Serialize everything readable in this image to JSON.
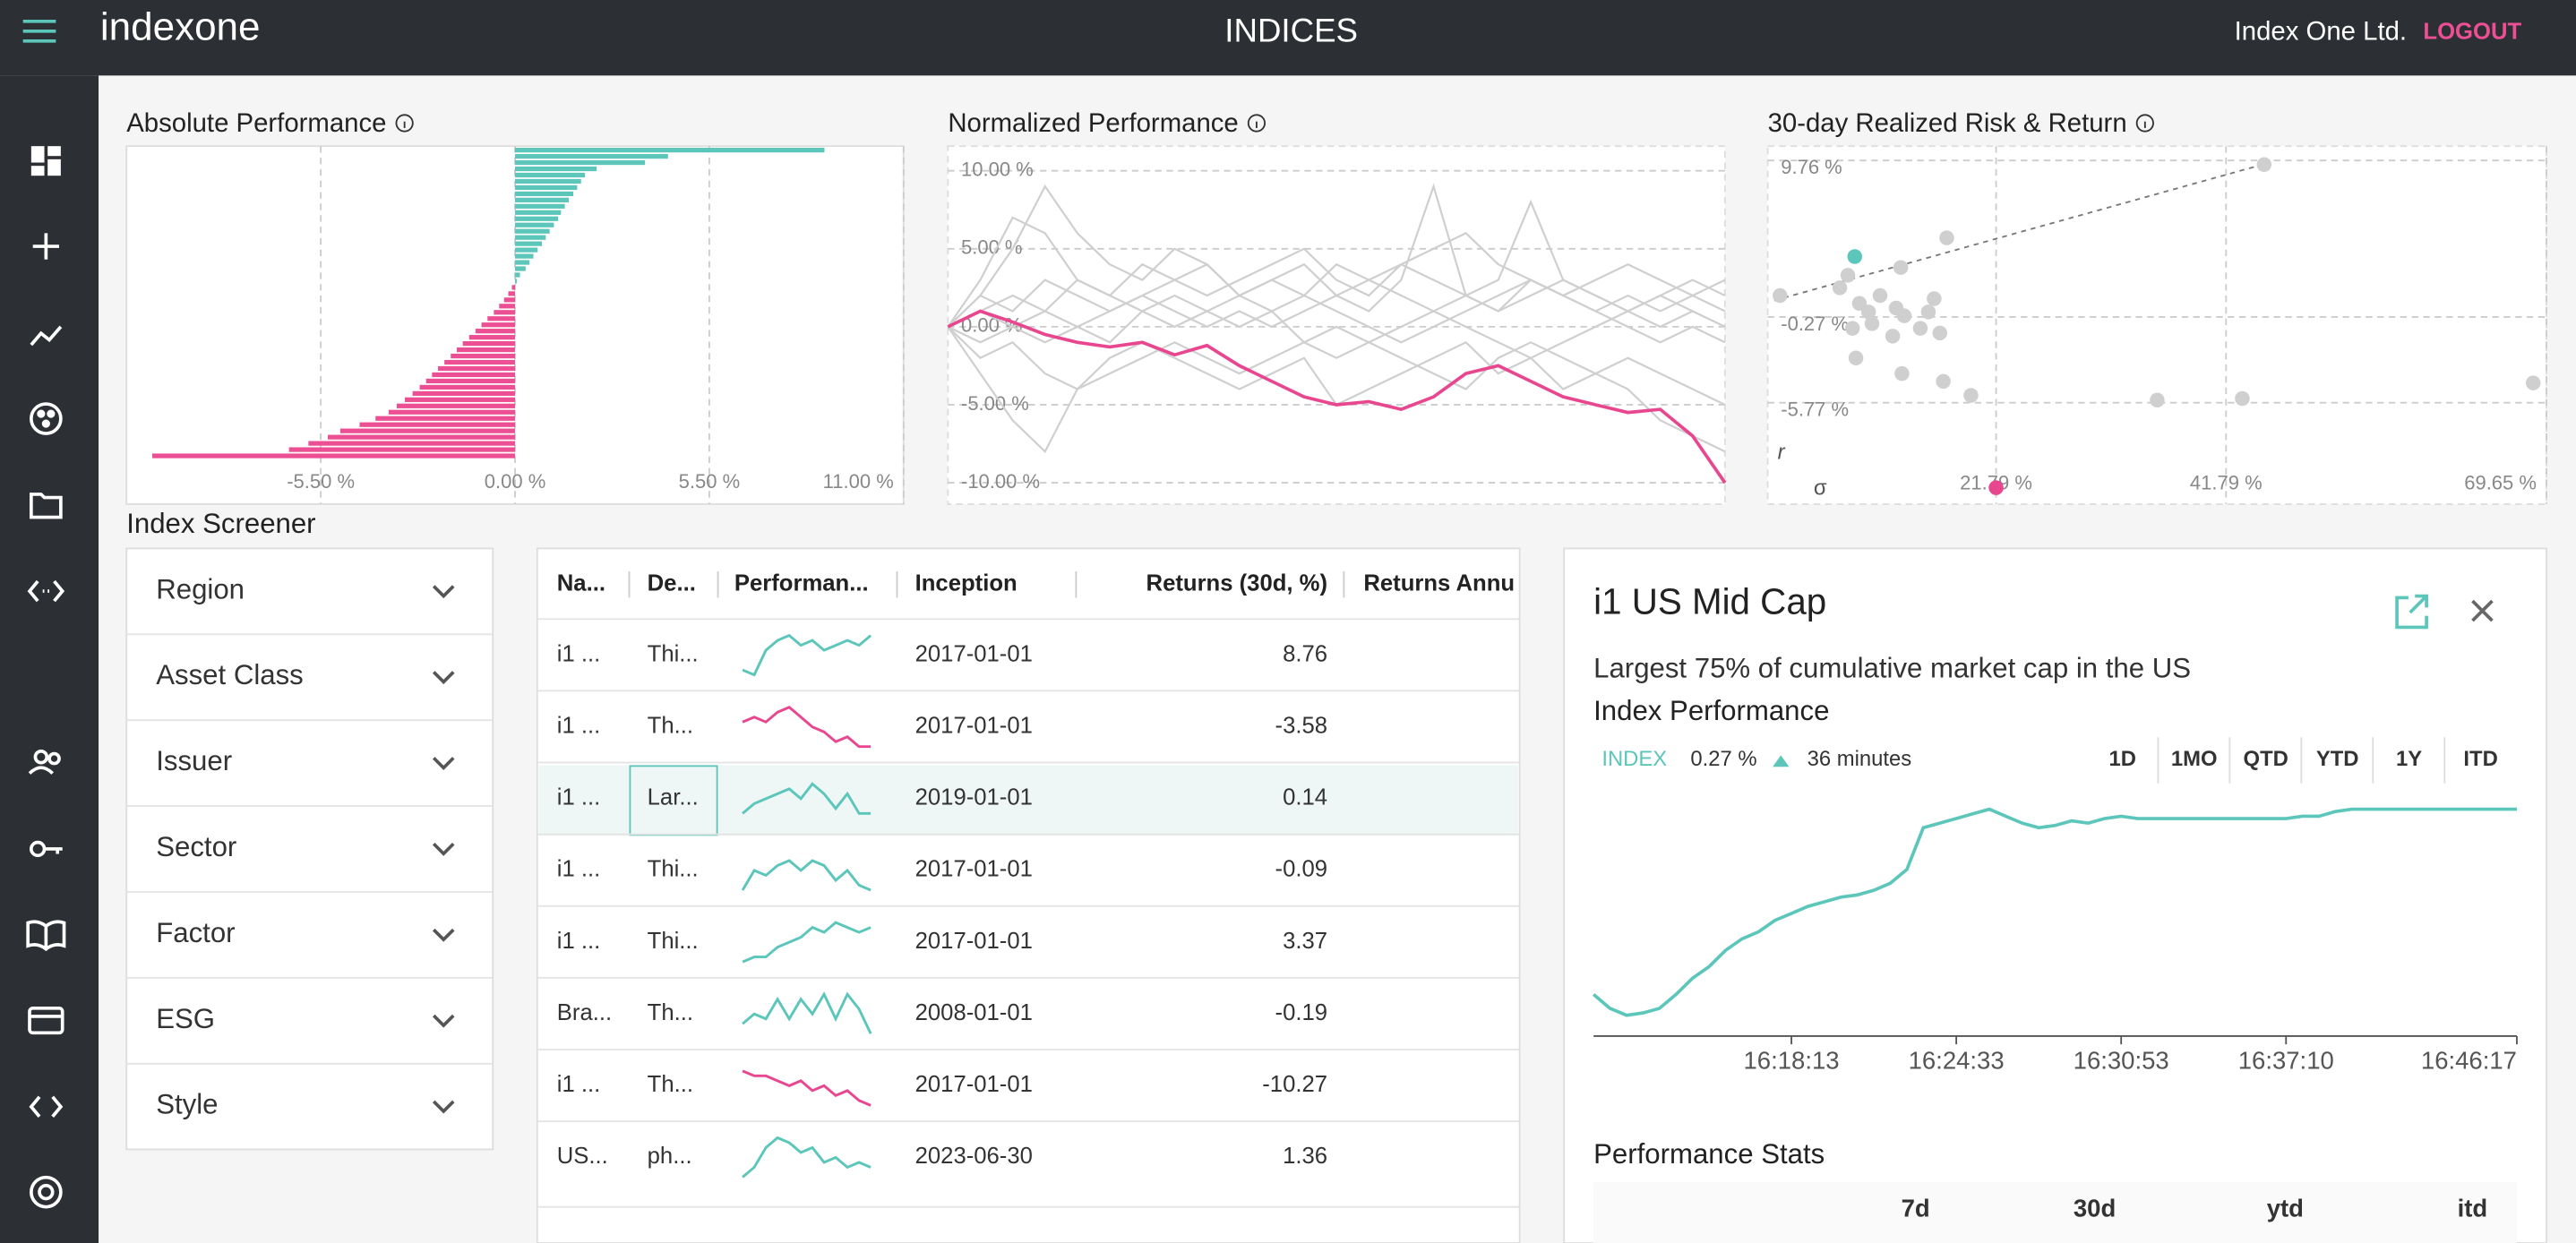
{
  "header": {
    "logo": "indexone",
    "title": "INDICES",
    "company": "Index One Ltd.",
    "logout": "LOGOUT"
  },
  "chart_data": [
    {
      "type": "bar",
      "orientation": "horizontal",
      "title": "Absolute Performance",
      "positive_color": "#5cc6ba",
      "negative_color": "#ec4f93",
      "grid": true,
      "values": [
        8.76,
        4.33,
        3.68,
        2.31,
        1.98,
        1.87,
        1.76,
        1.65,
        1.52,
        1.41,
        1.3,
        1.22,
        1.1,
        0.98,
        0.87,
        0.76,
        0.64,
        0.52,
        0.41,
        0.3,
        0.14,
        0.05,
        -0.09,
        -0.19,
        -0.31,
        -0.45,
        -0.6,
        -0.78,
        -0.95,
        -1.12,
        -1.3,
        -1.48,
        -1.65,
        -1.82,
        -2,
        -2.18,
        -2.35,
        -2.52,
        -2.7,
        -2.9,
        -3.12,
        -3.35,
        -3.58,
        -3.95,
        -4.4,
        -4.95,
        -5.3,
        -5.85,
        -6.4,
        -10.27
      ],
      "xlim": [
        -11,
        11
      ],
      "xticks": [
        {
          "value": -5.5,
          "label": "-5.50 %"
        },
        {
          "value": 0,
          "label": "0.00 %"
        },
        {
          "value": 5.5,
          "label": "5.50 %"
        },
        {
          "value": 11,
          "label": "11.00 %"
        }
      ]
    },
    {
      "type": "line",
      "title": "Normalized Performance",
      "grid": true,
      "ylim": [
        -11.37,
        11.58
      ],
      "yticks": [
        {
          "value": 10,
          "label": "10.00 %"
        },
        {
          "value": 5,
          "label": "5.00 %"
        },
        {
          "value": 0,
          "label": "0.00 %"
        },
        {
          "value": -5,
          "label": "-5.00 %"
        },
        {
          "value": -10,
          "label": "-10.00 %"
        }
      ],
      "series": [
        {
          "color": "#cfcfcf",
          "values": [
            0,
            2,
            5,
            9,
            6,
            4,
            3,
            5,
            4,
            2,
            3,
            4,
            2,
            1,
            3,
            9,
            2,
            1,
            3,
            2,
            1,
            2,
            1,
            2,
            1
          ]
        },
        {
          "color": "#cfcfcf",
          "values": [
            0,
            -3,
            -6,
            -8,
            -4,
            -2,
            -1,
            -2,
            -3,
            -4,
            -3,
            -2,
            -5,
            -4,
            -3,
            -2,
            -1,
            -3,
            -2,
            -4,
            -3,
            -2,
            -3,
            -4,
            -5
          ]
        },
        {
          "color": "#cfcfcf",
          "values": [
            0,
            1,
            2,
            1,
            3,
            2,
            4,
            3,
            2,
            3,
            4,
            5,
            3,
            2,
            4,
            5,
            6,
            4,
            3,
            2,
            3,
            4,
            3,
            2,
            3
          ]
        },
        {
          "color": "#cfcfcf",
          "values": [
            0,
            -1,
            0,
            1,
            0,
            -1,
            1,
            2,
            1,
            0,
            1,
            2,
            1,
            0,
            -1,
            0,
            1,
            2,
            3,
            2,
            1,
            0,
            -1,
            0,
            -1
          ]
        },
        {
          "color": "#cfcfcf",
          "values": [
            0,
            2,
            1,
            3,
            2,
            1,
            2,
            3,
            4,
            2,
            3,
            2,
            4,
            3,
            2,
            1,
            2,
            3,
            8,
            3,
            2,
            1,
            0,
            1,
            0
          ]
        },
        {
          "color": "#cfcfcf",
          "values": [
            0,
            -2,
            -1,
            -3,
            -4,
            -3,
            -2,
            -1,
            -2,
            -3,
            -2,
            -1,
            0,
            -1,
            -2,
            -3,
            -4,
            -2,
            -1,
            -2,
            -3,
            -4,
            -6,
            -7,
            -8
          ]
        },
        {
          "color": "#cfcfcf",
          "values": [
            0,
            1,
            0,
            -1,
            0,
            1,
            2,
            1,
            0,
            1,
            0,
            1,
            2,
            3,
            4,
            3,
            2,
            1,
            2,
            3,
            2,
            1,
            2,
            1,
            0
          ]
        },
        {
          "color": "#cfcfcf",
          "values": [
            0,
            3,
            7,
            6,
            3,
            2,
            1,
            0,
            1,
            2,
            1,
            -1,
            -2,
            -1,
            0,
            1,
            0,
            -1,
            -2,
            -1,
            0,
            1,
            2,
            3,
            2
          ]
        },
        {
          "color": "#e8478f",
          "values": [
            0,
            1,
            0.3,
            -0.5,
            -1,
            -1.3,
            -1,
            -1.8,
            -1.2,
            -2.5,
            -3.5,
            -4.5,
            -5,
            -4.8,
            -5.3,
            -4.5,
            -3,
            -2.5,
            -3.5,
            -4.5,
            -5,
            -5.5,
            -5.3,
            -7,
            -10
          ]
        }
      ]
    },
    {
      "type": "scatter",
      "title": "30-day Realized Risk & Return",
      "xlabel": "σ",
      "ylabel": "r",
      "grid": true,
      "xlim": [
        1.93,
        69.65
      ],
      "ylim": [
        -12.27,
        10.68
      ],
      "xticks": [
        {
          "value": 21.79,
          "label": "21.79 %"
        },
        {
          "value": 41.79,
          "label": "41.79 %"
        },
        {
          "value": 69.65,
          "label": "69.65 %"
        }
      ],
      "yticks": [
        {
          "value": 9.76,
          "label": "9.76 %"
        },
        {
          "value": -0.27,
          "label": "-0.27 %"
        },
        {
          "value": -5.77,
          "label": "-5.77 %"
        }
      ],
      "series": [
        {
          "color": "#cfcfcf",
          "x": [
            45.1,
            13.5,
            17.5,
            3.0,
            8.2,
            8.9,
            9.9,
            10.7,
            11.0,
            9.3,
            13.1,
            13.8,
            15.9,
            16.4,
            15.2,
            16.9,
            12.8,
            9.6,
            13.6,
            17.2,
            19.6,
            35.8,
            43.2,
            68.5,
            11.7
          ],
          "values": [
            9.5,
            2.9,
            4.8,
            1.1,
            1.6,
            2.4,
            0.6,
            0.05,
            -0.7,
            -1.0,
            0.3,
            -0.2,
            0.05,
            0.9,
            -1.0,
            -1.3,
            -1.5,
            -2.9,
            -3.9,
            -4.4,
            -5.3,
            -5.6,
            -5.5,
            -4.5,
            1.1
          ]
        },
        {
          "color": "#5cc6ba",
          "x": [
            9.5
          ],
          "values": [
            3.6
          ]
        }
      ],
      "trendline": {
        "x": [
          2.5,
          45.07
        ],
        "values": [
          0.78,
          9.52
        ]
      },
      "x_marker": {
        "value": 21.79,
        "color": "#e8478f"
      }
    },
    {
      "type": "line",
      "title": "Index Performance",
      "color": "#5cc6ba",
      "ylim": [
        0,
        100
      ],
      "categories": [
        null,
        null,
        null,
        null,
        null,
        null,
        null,
        null,
        null,
        null,
        null,
        null,
        "16:18:13",
        null,
        null,
        null,
        null,
        null,
        null,
        null,
        null,
        null,
        "16:24:33",
        null,
        null,
        null,
        null,
        null,
        null,
        null,
        null,
        null,
        "16:30:53",
        null,
        null,
        null,
        null,
        null,
        null,
        null,
        null,
        null,
        "16:37:10",
        null,
        null,
        null,
        null,
        null,
        null,
        null,
        null,
        null,
        null,
        null,
        null,
        null,
        "16:46:17"
      ],
      "values": [
        18,
        12,
        9,
        10,
        12,
        18,
        25,
        30,
        37,
        42,
        45,
        50,
        53,
        56,
        58,
        60,
        61,
        63,
        66,
        72,
        90,
        92,
        94,
        96,
        98,
        95,
        92,
        90,
        91,
        93,
        92,
        94,
        95,
        94,
        94,
        94,
        94,
        94,
        94,
        94,
        94,
        94,
        94,
        95,
        95,
        97,
        98,
        98,
        98,
        98,
        98,
        98,
        98,
        98,
        98,
        98,
        98
      ]
    }
  ],
  "screener": {
    "title": "Index Screener",
    "filters": [
      "Region",
      "Asset Class",
      "Issuer",
      "Sector",
      "Factor",
      "ESG",
      "Style"
    ]
  },
  "table": {
    "columns": [
      "Na...",
      "De...",
      "Performan...",
      "Inception",
      "Returns (30d, %)",
      "Returns Annu"
    ],
    "spark_ylim": [
      -5,
      5
    ],
    "rows": [
      {
        "name": "i1 ...",
        "description": "Thi...",
        "color": "#5cc6ba",
        "performance": [
          -3,
          -4,
          1,
          3,
          4,
          2,
          3,
          1,
          2,
          3,
          2,
          4
        ],
        "inception": "2017-01-01",
        "returns_30d": 8.76
      },
      {
        "name": "i1 ...",
        "description": "Th...",
        "color": "#e8478f",
        "performance": [
          1,
          2,
          1,
          3,
          4,
          2,
          0,
          -1,
          -3,
          -2,
          -4,
          -4
        ],
        "inception": "2017-01-01",
        "returns_30d": -3.58
      },
      {
        "name": "i1 ...",
        "description": "Lar...",
        "color": "#5cc6ba",
        "performance": [
          -3,
          -1,
          0,
          1,
          2,
          0,
          3,
          1,
          -2,
          1,
          -3,
          -3
        ],
        "inception": "2019-01-01",
        "returns_30d": 0.14
      },
      {
        "name": "i1 ...",
        "description": "Thi...",
        "color": "#5cc6ba",
        "performance": [
          -4,
          0,
          -1,
          1,
          2,
          0,
          2,
          1,
          -2,
          0,
          -3,
          -4
        ],
        "inception": "2017-01-01",
        "returns_30d": -0.09
      },
      {
        "name": "i1 ...",
        "description": "Thi...",
        "color": "#5cc6ba",
        "performance": [
          -4,
          -3,
          -3,
          -1,
          0,
          1,
          3,
          2,
          4,
          3,
          2,
          3
        ],
        "inception": "2017-01-01",
        "returns_30d": 3.37
      },
      {
        "name": "Bra...",
        "description": "Th...",
        "color": "#5cc6ba",
        "performance": [
          -2,
          0,
          -1,
          3,
          -1,
          3,
          0,
          4,
          -1,
          4,
          1,
          -4
        ],
        "inception": "2008-01-01",
        "returns_30d": -0.19
      },
      {
        "name": "i1 ...",
        "description": "Th...",
        "color": "#e8478f",
        "performance": [
          3,
          2,
          2,
          1,
          0,
          1,
          -1,
          0,
          -2,
          -1,
          -3,
          -4
        ],
        "inception": "2017-01-01",
        "returns_30d": -10.27
      },
      {
        "name": "US...",
        "description": "ph...",
        "color": "#5cc6ba",
        "performance": [
          -4,
          -2,
          2,
          4,
          3,
          1,
          2,
          -1,
          0,
          -2,
          -1,
          -2
        ],
        "inception": "2023-06-30",
        "returns_30d": 1.36
      }
    ]
  },
  "detail": {
    "title": "i1 US Mid Cap",
    "description": "Largest 75% of cumulative market cap in the US",
    "legend": "INDEX",
    "change": "0.27 %",
    "age": "36 minutes",
    "periods": [
      "1D",
      "1MO",
      "QTD",
      "YTD",
      "1Y",
      "ITD"
    ],
    "stats_title": "Performance Stats",
    "stats_columns": [
      "7d",
      "30d",
      "ytd",
      "itd"
    ]
  }
}
